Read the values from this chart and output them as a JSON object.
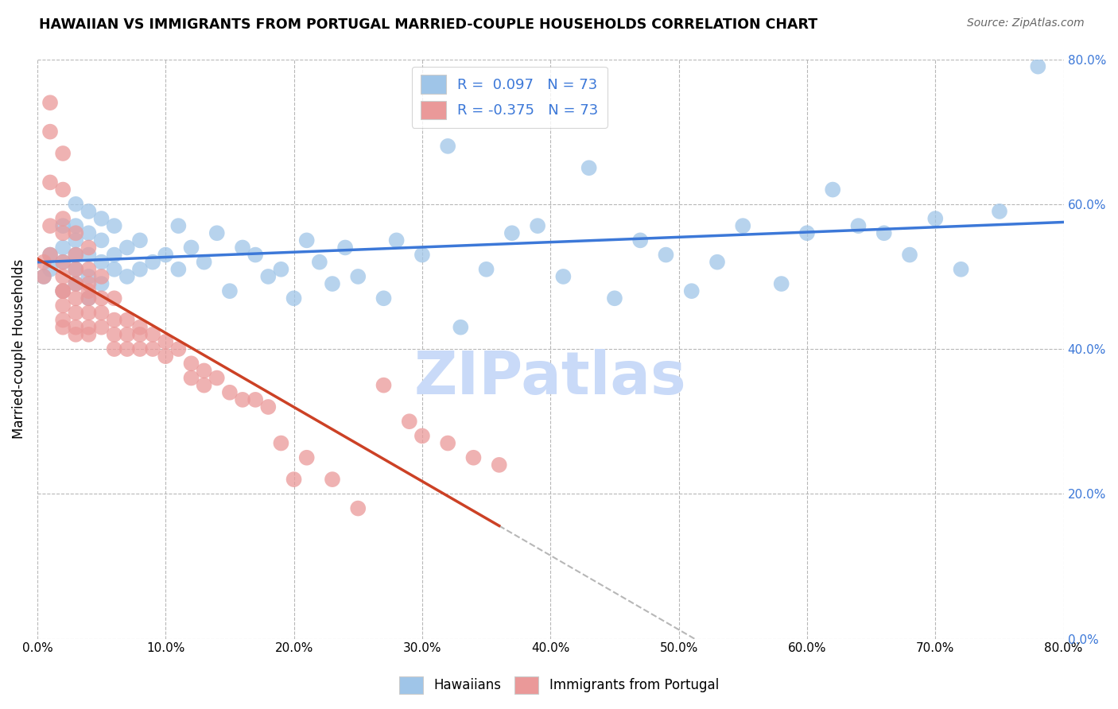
{
  "title": "HAWAIIAN VS IMMIGRANTS FROM PORTUGAL MARRIED-COUPLE HOUSEHOLDS CORRELATION CHART",
  "source": "Source: ZipAtlas.com",
  "ylabel": "Married-couple Households",
  "xmin": 0.0,
  "xmax": 0.8,
  "ymin": 0.0,
  "ymax": 0.8,
  "x_ticks": [
    0.0,
    0.1,
    0.2,
    0.3,
    0.4,
    0.5,
    0.6,
    0.7,
    0.8
  ],
  "y_ticks_right": [
    0.0,
    0.2,
    0.4,
    0.6,
    0.8
  ],
  "hawaiian_R": 0.097,
  "portugal_R": -0.375,
  "N": 73,
  "blue_color": "#9fc5e8",
  "pink_color": "#ea9999",
  "blue_line_color": "#3c78d8",
  "pink_line_color": "#cc4125",
  "legend_text_color": "#3c78d8",
  "watermark_color": "#c9daf8",
  "background_color": "#ffffff",
  "grid_color": "#b7b7b7",
  "hawaiians_x": [
    0.005,
    0.01,
    0.01,
    0.02,
    0.02,
    0.02,
    0.02,
    0.03,
    0.03,
    0.03,
    0.03,
    0.03,
    0.03,
    0.04,
    0.04,
    0.04,
    0.04,
    0.04,
    0.05,
    0.05,
    0.05,
    0.05,
    0.06,
    0.06,
    0.06,
    0.07,
    0.07,
    0.08,
    0.08,
    0.09,
    0.1,
    0.11,
    0.11,
    0.12,
    0.13,
    0.14,
    0.15,
    0.16,
    0.17,
    0.18,
    0.19,
    0.2,
    0.21,
    0.22,
    0.23,
    0.24,
    0.25,
    0.27,
    0.28,
    0.3,
    0.32,
    0.33,
    0.35,
    0.37,
    0.39,
    0.41,
    0.43,
    0.45,
    0.47,
    0.49,
    0.51,
    0.53,
    0.55,
    0.58,
    0.6,
    0.62,
    0.64,
    0.66,
    0.68,
    0.7,
    0.72,
    0.75,
    0.78
  ],
  "hawaiians_y": [
    0.5,
    0.51,
    0.53,
    0.48,
    0.52,
    0.54,
    0.57,
    0.49,
    0.51,
    0.53,
    0.55,
    0.57,
    0.6,
    0.47,
    0.5,
    0.53,
    0.56,
    0.59,
    0.49,
    0.52,
    0.55,
    0.58,
    0.51,
    0.53,
    0.57,
    0.5,
    0.54,
    0.51,
    0.55,
    0.52,
    0.53,
    0.51,
    0.57,
    0.54,
    0.52,
    0.56,
    0.48,
    0.54,
    0.53,
    0.5,
    0.51,
    0.47,
    0.55,
    0.52,
    0.49,
    0.54,
    0.5,
    0.47,
    0.55,
    0.53,
    0.68,
    0.43,
    0.51,
    0.56,
    0.57,
    0.5,
    0.65,
    0.47,
    0.55,
    0.53,
    0.48,
    0.52,
    0.57,
    0.49,
    0.56,
    0.62,
    0.57,
    0.56,
    0.53,
    0.58,
    0.51,
    0.59,
    0.79
  ],
  "portugal_x": [
    0.005,
    0.005,
    0.01,
    0.01,
    0.01,
    0.01,
    0.01,
    0.02,
    0.02,
    0.02,
    0.02,
    0.02,
    0.02,
    0.02,
    0.02,
    0.02,
    0.02,
    0.02,
    0.03,
    0.03,
    0.03,
    0.03,
    0.03,
    0.03,
    0.03,
    0.03,
    0.04,
    0.04,
    0.04,
    0.04,
    0.04,
    0.04,
    0.04,
    0.04,
    0.05,
    0.05,
    0.05,
    0.05,
    0.06,
    0.06,
    0.06,
    0.06,
    0.07,
    0.07,
    0.07,
    0.08,
    0.08,
    0.08,
    0.09,
    0.09,
    0.1,
    0.1,
    0.11,
    0.12,
    0.12,
    0.13,
    0.13,
    0.14,
    0.15,
    0.16,
    0.17,
    0.18,
    0.19,
    0.2,
    0.21,
    0.23,
    0.25,
    0.27,
    0.29,
    0.3,
    0.32,
    0.34,
    0.36
  ],
  "portugal_y": [
    0.52,
    0.5,
    0.74,
    0.7,
    0.63,
    0.57,
    0.53,
    0.67,
    0.62,
    0.58,
    0.56,
    0.52,
    0.5,
    0.48,
    0.46,
    0.44,
    0.48,
    0.43,
    0.56,
    0.53,
    0.51,
    0.49,
    0.47,
    0.45,
    0.43,
    0.42,
    0.54,
    0.51,
    0.49,
    0.47,
    0.45,
    0.43,
    0.48,
    0.42,
    0.5,
    0.47,
    0.45,
    0.43,
    0.47,
    0.44,
    0.42,
    0.4,
    0.44,
    0.42,
    0.4,
    0.43,
    0.42,
    0.4,
    0.42,
    0.4,
    0.41,
    0.39,
    0.4,
    0.38,
    0.36,
    0.37,
    0.35,
    0.36,
    0.34,
    0.33,
    0.33,
    0.32,
    0.27,
    0.22,
    0.25,
    0.22,
    0.18,
    0.35,
    0.3,
    0.28,
    0.27,
    0.25,
    0.24
  ]
}
